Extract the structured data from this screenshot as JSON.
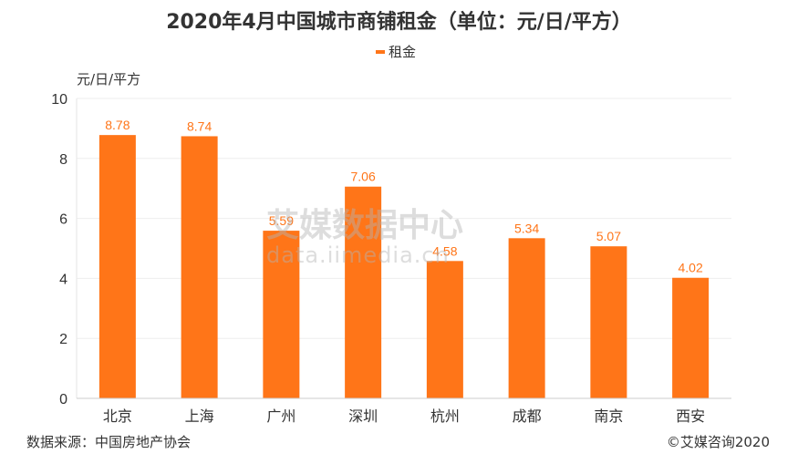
{
  "chart_data": {
    "type": "bar",
    "title": "2020年4月中国城市商铺租金（单位：元/日/平方）",
    "legend": [
      "租金"
    ],
    "legend_position": "top-center",
    "ylabel": "元/日/平方",
    "xlabel": "",
    "ylim": [
      0,
      10
    ],
    "yticks": [
      0,
      2,
      4,
      6,
      8,
      10
    ],
    "grid": true,
    "categories": [
      "北京",
      "上海",
      "广州",
      "深圳",
      "杭州",
      "成都",
      "南京",
      "西安"
    ],
    "series": [
      {
        "name": "租金",
        "values": [
          8.78,
          8.74,
          5.59,
          7.06,
          4.58,
          5.34,
          5.07,
          4.02
        ],
        "color": "#FF7518"
      }
    ]
  },
  "footer": {
    "source": "数据来源：中国房地产协会",
    "copyright": "©艾媒咨询2020"
  },
  "watermark": {
    "name": "艾媒数据中心",
    "url": "data.iimedia.cn"
  }
}
